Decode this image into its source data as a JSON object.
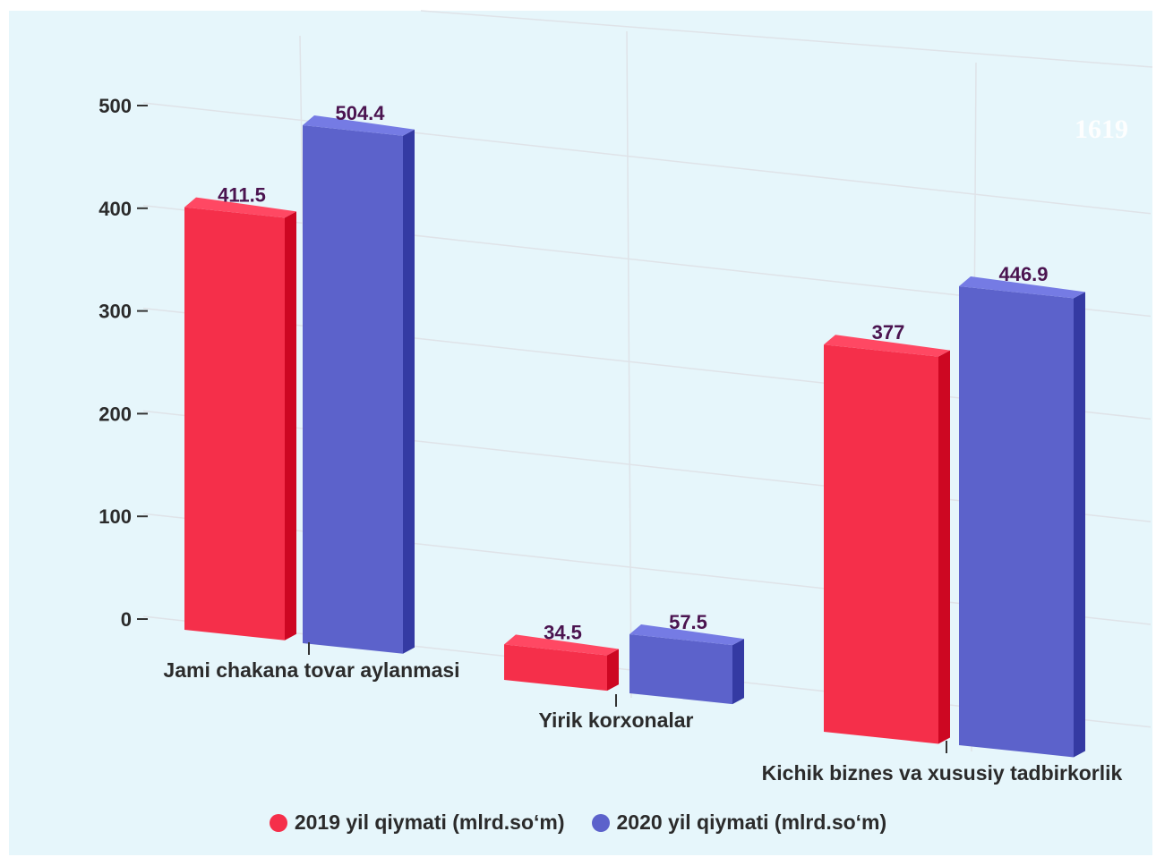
{
  "watermark": "1619",
  "chart_data": {
    "type": "bar",
    "categories": [
      "Jami chakana tovar aylanmasi",
      "Yirik korxonalar",
      "Kichik biznes va xususiy tadbirkorlik"
    ],
    "series": [
      {
        "name": "2019 yil qiymati (mlrd.so‘m)",
        "color": "#f52f4a",
        "values": [
          411.5,
          34.5,
          377
        ]
      },
      {
        "name": "2020 yil qiymati (mlrd.so‘m)",
        "color": "#5c62cb",
        "values": [
          504.4,
          57.5,
          446.9
        ]
      }
    ],
    "data_labels": [
      "411.5",
      "34.5",
      "377",
      "504.4",
      "57.5",
      "446.9"
    ],
    "yticks": [
      0,
      100,
      200,
      300,
      400,
      500
    ],
    "ylim": [
      0,
      500
    ],
    "grid": true,
    "legend": "bottom",
    "style": "3d-perspective"
  }
}
